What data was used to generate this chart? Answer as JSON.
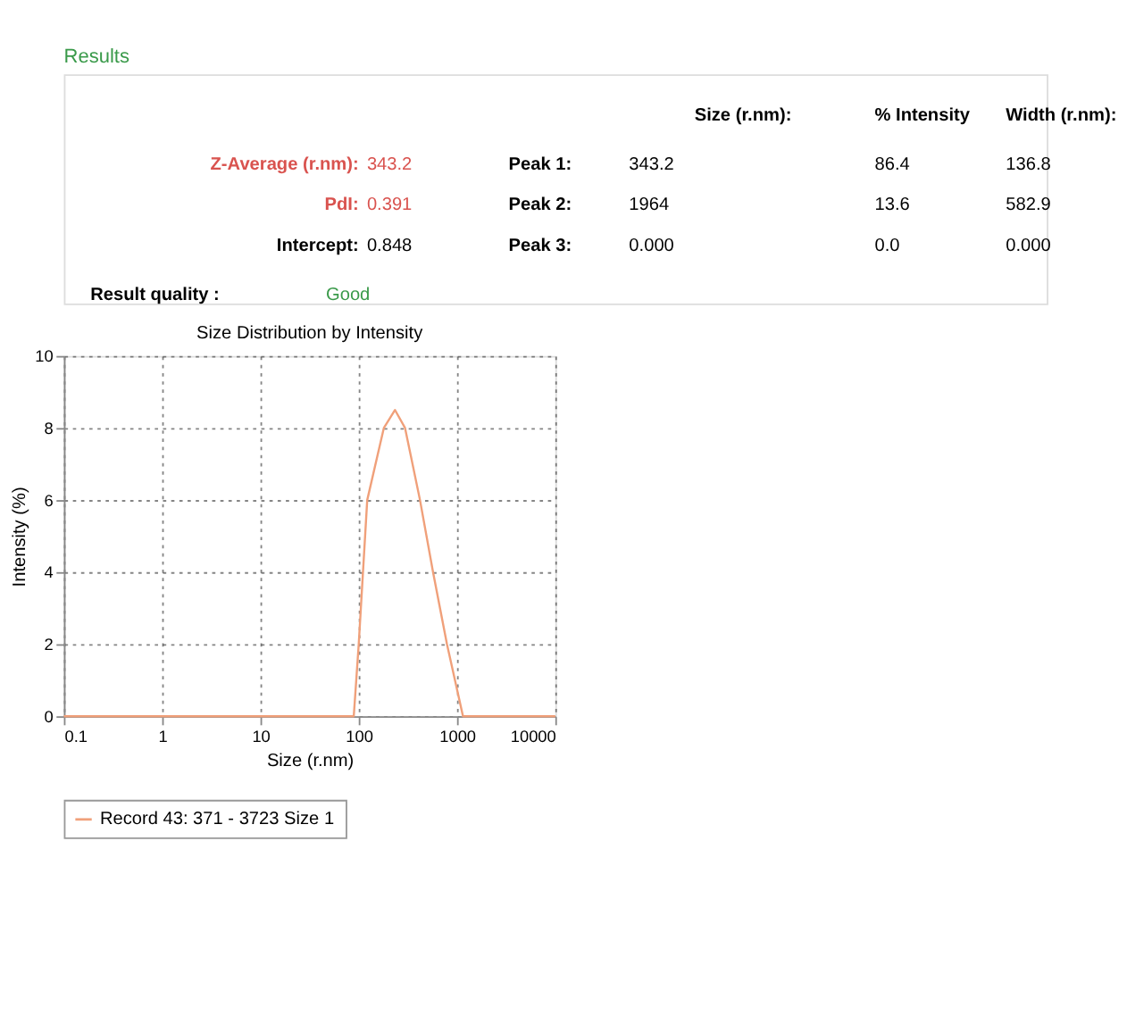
{
  "chart_data": [
    {
      "type": "other",
      "title": "Results",
      "annotations": [
        "Size (r.nm):",
        "% Intensity",
        "Width (r.nm):",
        "Z-Average (r.nm):",
        "343.2",
        "Peak 1:",
        "343.2",
        "86.4",
        "136.8",
        "PdI:",
        "0.391",
        "Peak 2:",
        "1964",
        "13.6",
        "582.9",
        "Intercept:",
        "0.848",
        "Peak 3:",
        "0.000",
        "0.0",
        "0.000",
        "Result quality :",
        "Good"
      ]
    },
    {
      "type": "line",
      "title": "Size Distribution by Intensity",
      "xlabel": "Size (r.nm)",
      "ylabel": "Intensity (%)",
      "log": "x",
      "grid": true,
      "legend": "bottom",
      "line_style": "solid",
      "marker": "none",
      "xlim": [
        0.1,
        10000
      ],
      "xticks": [
        0.1,
        1,
        10,
        100,
        1000,
        10000
      ],
      "ylim": [
        0,
        10
      ],
      "yticks": [
        0,
        2,
        4,
        6,
        8,
        10
      ],
      "x": [
        0.1,
        1,
        10,
        50,
        89,
        100,
        122,
        180,
        234,
        296,
        420,
        570,
        790,
        1150,
        2000,
        5000,
        10000
      ],
      "series": [
        {
          "name": "Record 43: 371 - 3723 Size 1",
          "color": "#f0a07a",
          "values": [
            0,
            0,
            0,
            0,
            0,
            2,
            6,
            8,
            8.5,
            8,
            6,
            4,
            2,
            0,
            0,
            0,
            0
          ]
        }
      ]
    }
  ]
}
